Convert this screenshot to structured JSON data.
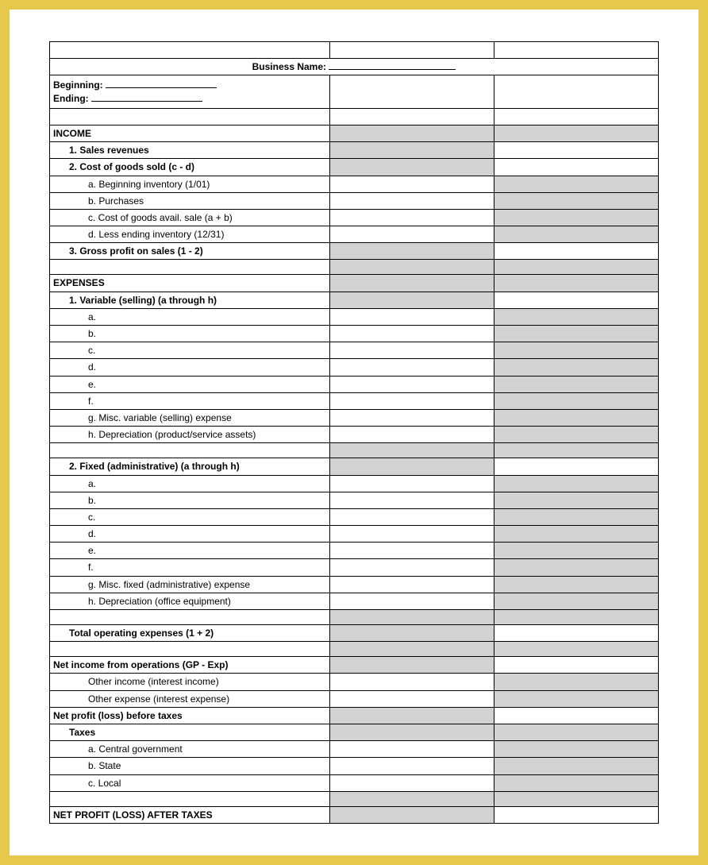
{
  "title_label": "Business Name:",
  "period": {
    "beginning_label": "Beginning:",
    "ending_label": "Ending:"
  },
  "rows": [
    {
      "type": "blank3"
    },
    {
      "type": "title"
    },
    {
      "type": "period"
    },
    {
      "type": "blank3"
    },
    {
      "type": "line",
      "label": "INCOME",
      "indent": 0,
      "bold": true,
      "shadeA": true,
      "shadeB": true
    },
    {
      "type": "line",
      "label": "1. Sales revenues",
      "indent": 1,
      "bold": true,
      "shadeA": true,
      "shadeB": false
    },
    {
      "type": "line",
      "label": "2. Cost of goods sold (c - d)",
      "indent": 1,
      "bold": true,
      "shadeA": true,
      "shadeB": false
    },
    {
      "type": "line",
      "label": "a. Beginning inventory (1/01)",
      "indent": 2,
      "bold": false,
      "shadeA": false,
      "shadeB": true
    },
    {
      "type": "line",
      "label": "b. Purchases",
      "indent": 2,
      "bold": false,
      "shadeA": false,
      "shadeB": true
    },
    {
      "type": "line",
      "label": "c. Cost of goods avail. sale (a + b)",
      "indent": 2,
      "bold": false,
      "shadeA": false,
      "shadeB": true
    },
    {
      "type": "line",
      "label": "d. Less ending inventory (12/31)",
      "indent": 2,
      "bold": false,
      "shadeA": false,
      "shadeB": true
    },
    {
      "type": "line",
      "label": "3. Gross profit on sales (1 - 2)",
      "indent": 1,
      "bold": true,
      "shadeA": true,
      "shadeB": false
    },
    {
      "type": "line",
      "label": "",
      "indent": 0,
      "bold": false,
      "shadeA": true,
      "shadeB": true
    },
    {
      "type": "line",
      "label": "EXPENSES",
      "indent": 0,
      "bold": true,
      "shadeA": true,
      "shadeB": true
    },
    {
      "type": "line",
      "label": "1. Variable (selling) (a through h)",
      "indent": 1,
      "bold": true,
      "shadeA": true,
      "shadeB": false
    },
    {
      "type": "line",
      "label": "a.",
      "indent": 2,
      "bold": false,
      "shadeA": false,
      "shadeB": true
    },
    {
      "type": "line",
      "label": "b.",
      "indent": 2,
      "bold": false,
      "shadeA": false,
      "shadeB": true
    },
    {
      "type": "line",
      "label": "c.",
      "indent": 2,
      "bold": false,
      "shadeA": false,
      "shadeB": true
    },
    {
      "type": "line",
      "label": "d.",
      "indent": 2,
      "bold": false,
      "shadeA": false,
      "shadeB": true
    },
    {
      "type": "line",
      "label": "e.",
      "indent": 2,
      "bold": false,
      "shadeA": false,
      "shadeB": true
    },
    {
      "type": "line",
      "label": "f.",
      "indent": 2,
      "bold": false,
      "shadeA": false,
      "shadeB": true
    },
    {
      "type": "line",
      "label": "g. Misc. variable (selling) expense",
      "indent": 2,
      "bold": false,
      "shadeA": false,
      "shadeB": true
    },
    {
      "type": "line",
      "label": "h. Depreciation (product/service assets)",
      "indent": 2,
      "bold": false,
      "shadeA": false,
      "shadeB": true
    },
    {
      "type": "line",
      "label": "",
      "indent": 0,
      "bold": false,
      "shadeA": true,
      "shadeB": true
    },
    {
      "type": "line",
      "label": "2. Fixed (administrative) (a through h)",
      "indent": 1,
      "bold": true,
      "shadeA": true,
      "shadeB": false
    },
    {
      "type": "line",
      "label": "a.",
      "indent": 2,
      "bold": false,
      "shadeA": false,
      "shadeB": true
    },
    {
      "type": "line",
      "label": "b.",
      "indent": 2,
      "bold": false,
      "shadeA": false,
      "shadeB": true
    },
    {
      "type": "line",
      "label": "c.",
      "indent": 2,
      "bold": false,
      "shadeA": false,
      "shadeB": true
    },
    {
      "type": "line",
      "label": "d.",
      "indent": 2,
      "bold": false,
      "shadeA": false,
      "shadeB": true
    },
    {
      "type": "line",
      "label": "e.",
      "indent": 2,
      "bold": false,
      "shadeA": false,
      "shadeB": true
    },
    {
      "type": "line",
      "label": "f.",
      "indent": 2,
      "bold": false,
      "shadeA": false,
      "shadeB": true
    },
    {
      "type": "line",
      "label": "g. Misc. fixed (administrative) expense",
      "indent": 2,
      "bold": false,
      "shadeA": false,
      "shadeB": true
    },
    {
      "type": "line",
      "label": "h. Depreciation (office equipment)",
      "indent": 2,
      "bold": false,
      "shadeA": false,
      "shadeB": true
    },
    {
      "type": "line",
      "label": "",
      "indent": 0,
      "bold": false,
      "shadeA": true,
      "shadeB": true
    },
    {
      "type": "line",
      "label": "Total operating expenses (1 + 2)",
      "indent": 1,
      "bold": true,
      "shadeA": true,
      "shadeB": false
    },
    {
      "type": "line",
      "label": "",
      "indent": 0,
      "bold": false,
      "shadeA": true,
      "shadeB": true
    },
    {
      "type": "line",
      "label": "Net income from operations (GP - Exp)",
      "indent": 0,
      "bold": true,
      "shadeA": true,
      "shadeB": false
    },
    {
      "type": "line",
      "label": "Other income (interest income)",
      "indent": 2,
      "bold": false,
      "shadeA": false,
      "shadeB": true
    },
    {
      "type": "line",
      "label": "Other expense (interest expense)",
      "indent": 2,
      "bold": false,
      "shadeA": false,
      "shadeB": true
    },
    {
      "type": "line",
      "label": "Net profit (loss) before taxes",
      "indent": 0,
      "bold": true,
      "shadeA": true,
      "shadeB": false
    },
    {
      "type": "line",
      "label": "Taxes",
      "indent": 1,
      "bold": true,
      "shadeA": true,
      "shadeB": true
    },
    {
      "type": "line",
      "label": "a. Central government",
      "indent": 2,
      "bold": false,
      "shadeA": false,
      "shadeB": true
    },
    {
      "type": "line",
      "label": "b. State",
      "indent": 2,
      "bold": false,
      "shadeA": false,
      "shadeB": true
    },
    {
      "type": "line",
      "label": "c. Local",
      "indent": 2,
      "bold": false,
      "shadeA": false,
      "shadeB": true
    },
    {
      "type": "line",
      "label": "",
      "indent": 0,
      "bold": false,
      "shadeA": true,
      "shadeB": true
    },
    {
      "type": "line",
      "label": "NET PROFIT (LOSS) AFTER TAXES",
      "indent": 0,
      "bold": true,
      "shadeA": true,
      "shadeB": false
    }
  ],
  "colors": {
    "frame": "#e6c84a",
    "paper": "#ffffff",
    "border": "#000000",
    "shade": "#d2d2d2"
  }
}
